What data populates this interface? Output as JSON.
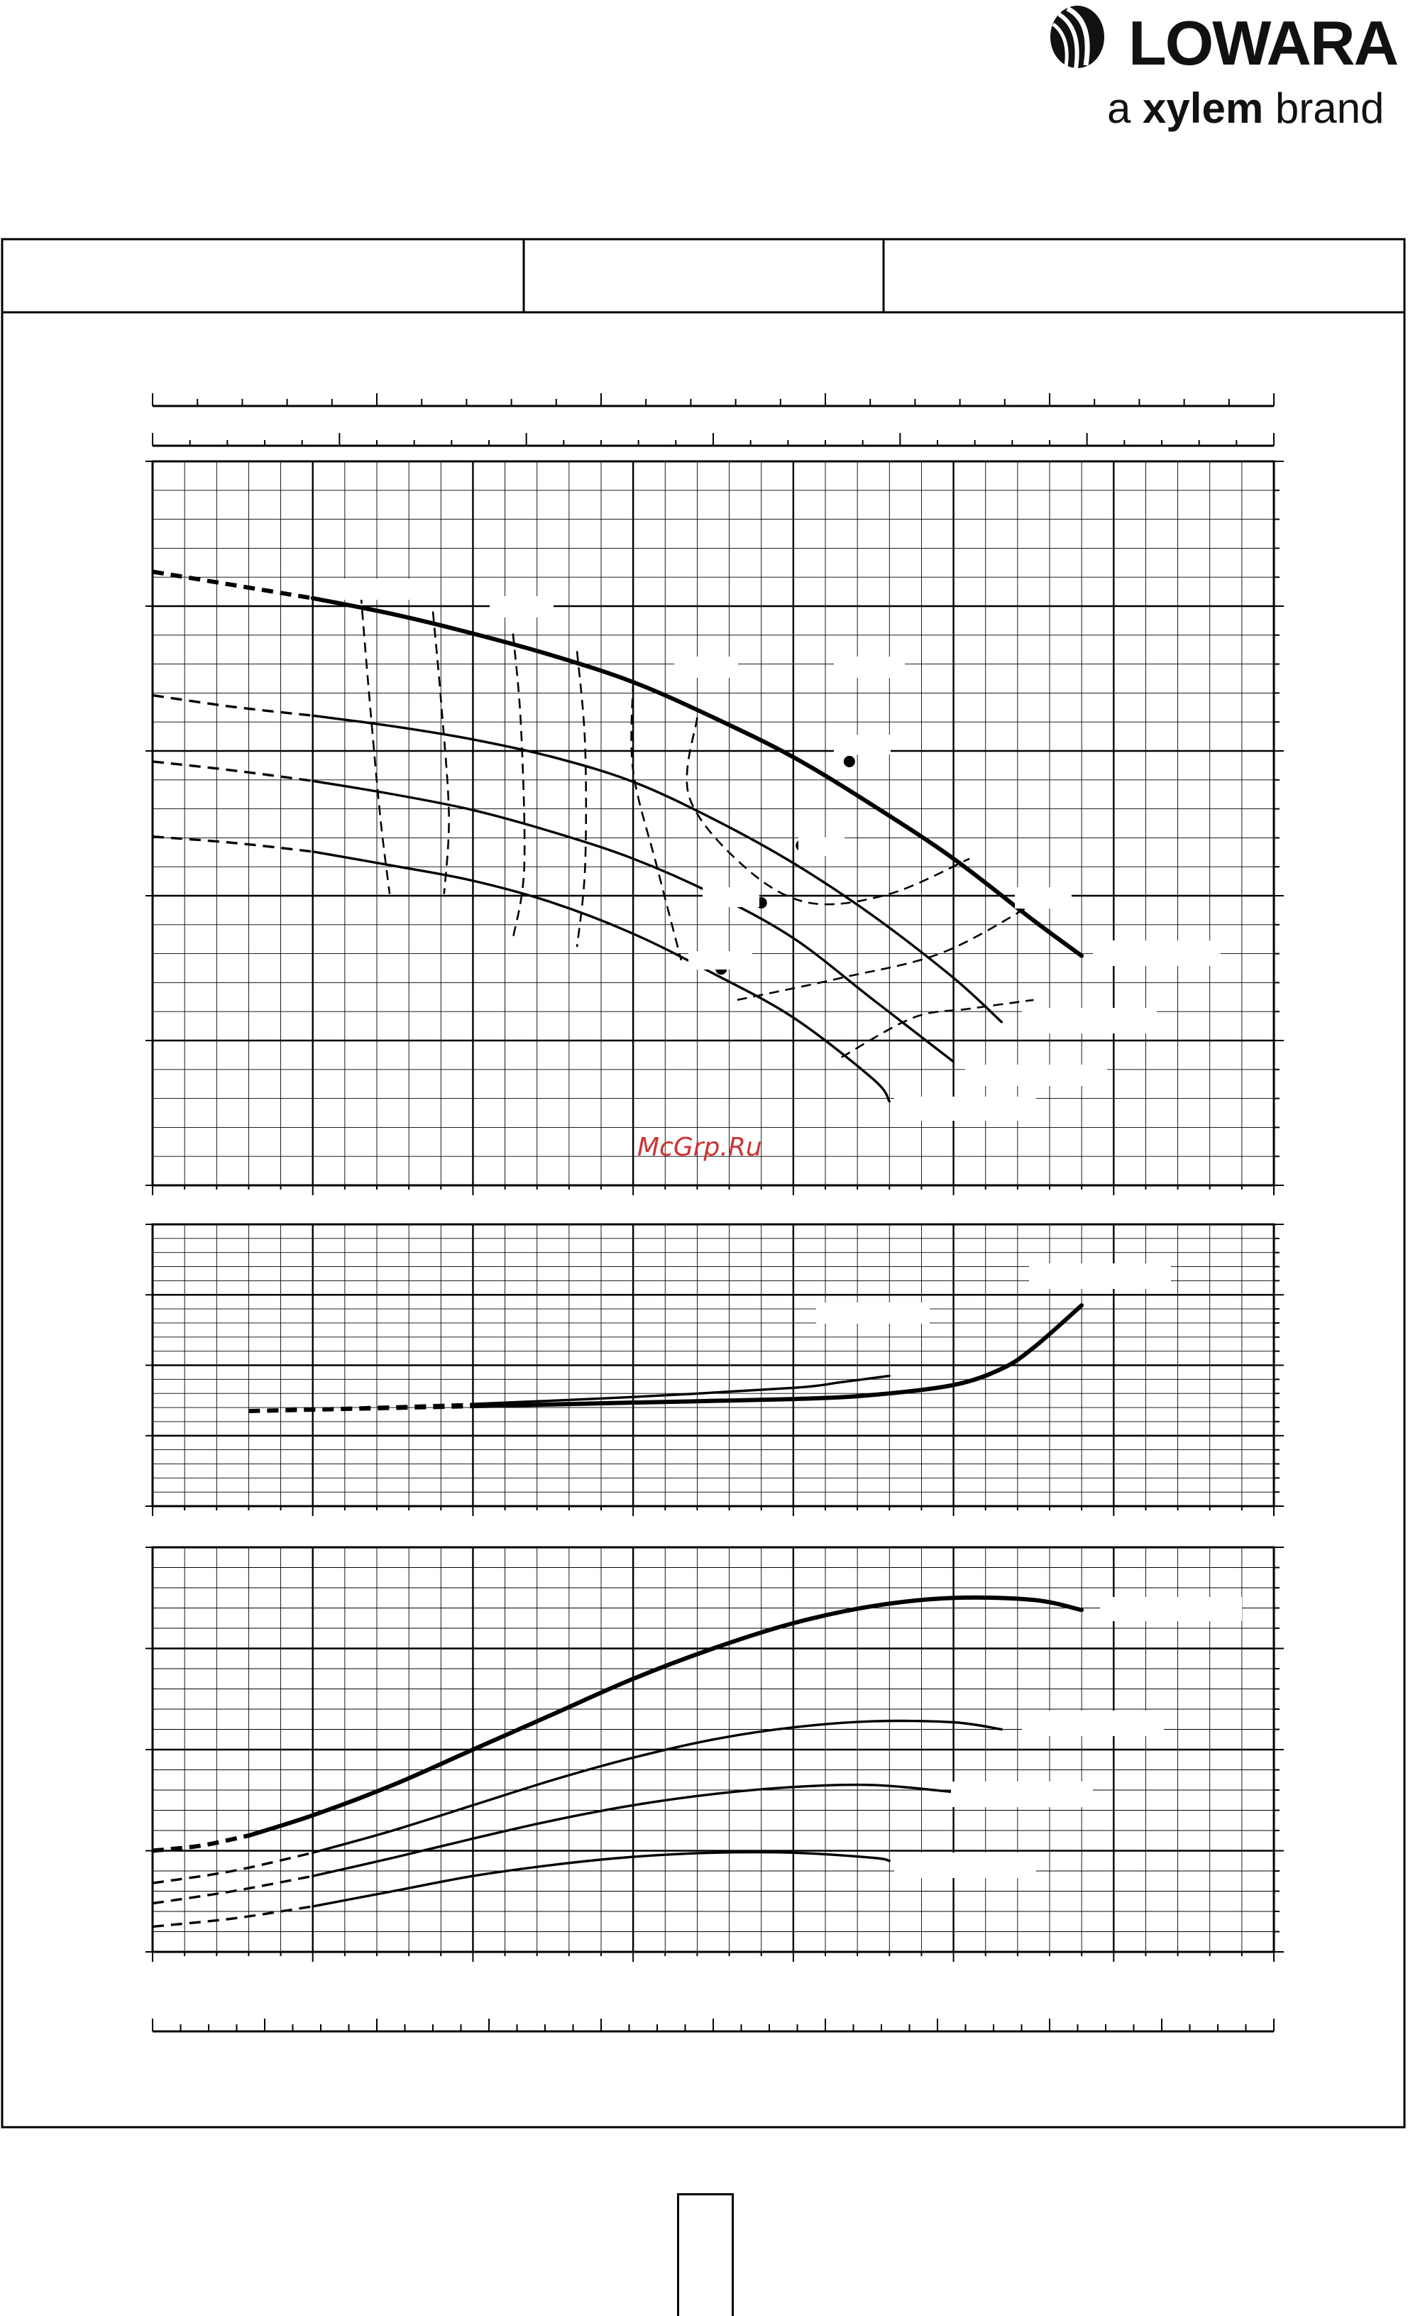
{
  "brand": {
    "name": "LOWARA",
    "tagline_prefix": "a ",
    "tagline_bold": "xylem",
    "tagline_suffix": " brand"
  },
  "watermark": "McGrp.Ru",
  "header_cells": [
    "",
    "",
    ""
  ],
  "page_number": "",
  "chart_data": [
    {
      "type": "line",
      "panel": "head",
      "xlim": [
        0,
        7
      ],
      "ylim": [
        0,
        8.2
      ],
      "series": [
        {
          "role": "max-impeller",
          "weight": "bold",
          "x": [
            0,
            0.5,
            1,
            1.5,
            2,
            2.5,
            3,
            3.5,
            4,
            4.5,
            5,
            5.5,
            5.8
          ],
          "y": [
            6.95,
            6.8,
            6.65,
            6.47,
            6.25,
            6.0,
            5.7,
            5.3,
            4.85,
            4.3,
            3.7,
            3.0,
            2.6
          ]
        },
        {
          "role": "impeller-2",
          "x": [
            0,
            0.5,
            1,
            1.5,
            2,
            2.5,
            3,
            3.5,
            4,
            4.5,
            5,
            5.3
          ],
          "y": [
            5.55,
            5.42,
            5.32,
            5.2,
            5.05,
            4.85,
            4.57,
            4.15,
            3.65,
            3.05,
            2.35,
            1.85
          ]
        },
        {
          "role": "impeller-3",
          "x": [
            0,
            0.5,
            1,
            1.5,
            2,
            2.5,
            3,
            3.5,
            4,
            4.5,
            5
          ],
          "y": [
            4.8,
            4.7,
            4.58,
            4.43,
            4.25,
            4.0,
            3.7,
            3.3,
            2.8,
            2.1,
            1.4
          ]
        },
        {
          "role": "min-impeller",
          "x": [
            0,
            0.5,
            1,
            1.5,
            2,
            2.5,
            3,
            3.5,
            4,
            4.5,
            4.6
          ],
          "y": [
            3.95,
            3.88,
            3.78,
            3.62,
            3.45,
            3.2,
            2.85,
            2.4,
            1.9,
            1.2,
            0.95
          ]
        }
      ],
      "operating_points": [
        {
          "x": 4.35,
          "y": 4.8
        },
        {
          "x": 4.05,
          "y": 3.85
        },
        {
          "x": 3.8,
          "y": 3.2
        },
        {
          "x": 3.55,
          "y": 2.45
        }
      ]
    },
    {
      "type": "line",
      "panel": "npsh",
      "xlim": [
        0,
        7
      ],
      "ylim": [
        0,
        4
      ],
      "series": [
        {
          "role": "npsh-main",
          "weight": "bold",
          "x": [
            0.6,
            1,
            2,
            3,
            4,
            4.5,
            5,
            5.3,
            5.5,
            5.8
          ],
          "y": [
            1.35,
            1.37,
            1.42,
            1.47,
            1.52,
            1.58,
            1.72,
            1.95,
            2.25,
            2.85
          ]
        },
        {
          "role": "npsh-secondary",
          "x": [
            0.6,
            1,
            2,
            3,
            4,
            4.3,
            4.6
          ],
          "y": [
            1.35,
            1.38,
            1.45,
            1.55,
            1.68,
            1.76,
            1.85
          ]
        }
      ]
    },
    {
      "type": "line",
      "panel": "power",
      "xlim": [
        0,
        7
      ],
      "ylim": [
        0,
        4
      ],
      "series": [
        {
          "role": "max-impeller",
          "weight": "bold",
          "x": [
            0,
            0.3,
            0.6,
            1,
            1.5,
            2,
            2.5,
            3,
            3.5,
            4,
            4.5,
            5,
            5.5,
            5.8
          ],
          "y": [
            1.0,
            1.05,
            1.15,
            1.35,
            1.65,
            2.0,
            2.35,
            2.7,
            3.0,
            3.25,
            3.42,
            3.5,
            3.48,
            3.38
          ]
        },
        {
          "role": "impeller-2",
          "x": [
            0,
            0.5,
            1,
            1.5,
            2,
            2.5,
            3,
            3.5,
            4,
            4.5,
            5,
            5.3
          ],
          "y": [
            0.68,
            0.8,
            0.98,
            1.2,
            1.45,
            1.7,
            1.92,
            2.1,
            2.22,
            2.28,
            2.27,
            2.2
          ]
        },
        {
          "role": "impeller-3",
          "x": [
            0,
            0.5,
            1,
            1.5,
            2,
            2.5,
            3,
            3.5,
            4,
            4.5,
            5
          ],
          "y": [
            0.48,
            0.6,
            0.75,
            0.93,
            1.12,
            1.3,
            1.45,
            1.56,
            1.63,
            1.65,
            1.58
          ]
        },
        {
          "role": "min-impeller",
          "x": [
            0,
            0.5,
            1,
            1.5,
            2,
            2.5,
            3,
            3.5,
            4,
            4.5,
            4.6
          ],
          "y": [
            0.25,
            0.33,
            0.45,
            0.6,
            0.75,
            0.86,
            0.94,
            0.98,
            0.98,
            0.93,
            0.9
          ]
        }
      ]
    }
  ]
}
